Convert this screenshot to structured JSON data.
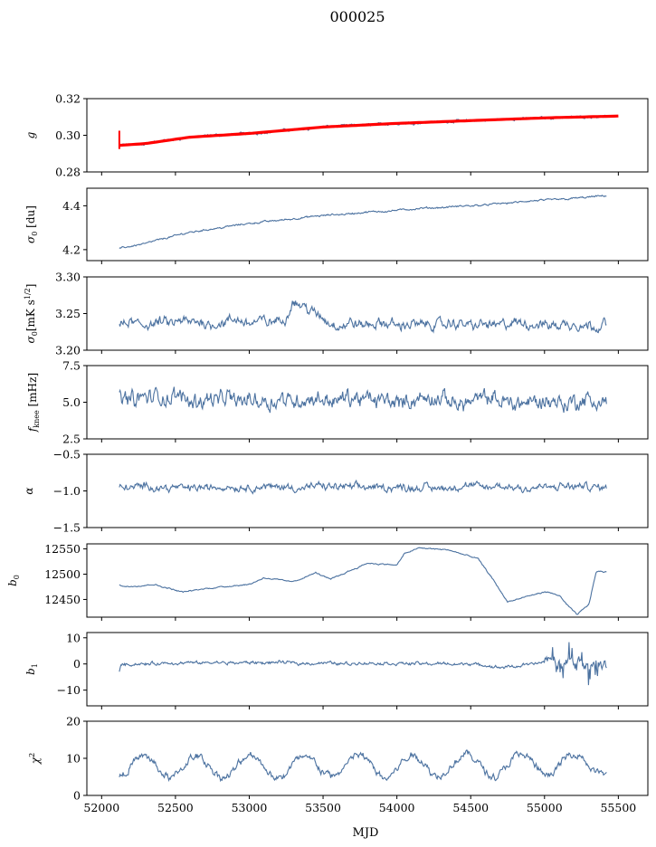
{
  "chart_data": {
    "type": "line",
    "title": "000025",
    "xlabel": "MJD",
    "xlim": [
      51900,
      55700
    ],
    "xticks": [
      52000,
      52500,
      53000,
      53500,
      54000,
      54500,
      55000,
      55500
    ],
    "colors": {
      "line": "#4c72a0",
      "overlay": "#ff0000"
    },
    "x_range": [
      52120,
      55420
    ],
    "panels": [
      {
        "id": "g",
        "ylabel": "g",
        "ylim": [
          0.28,
          0.32
        ],
        "yticks": [
          0.28,
          0.3,
          0.32
        ],
        "ytick_labels": [
          "0.28",
          "0.30",
          "0.32"
        ],
        "x": [
          52120,
          52300,
          52600,
          53000,
          53500,
          54000,
          54500,
          55000,
          55420
        ],
        "values": [
          0.2945,
          0.2955,
          0.299,
          0.301,
          0.3045,
          0.3065,
          0.308,
          0.3095,
          0.3105
        ],
        "noise": 0.0007,
        "overlay": {
          "name": "",
          "x": [
            52120,
            52300,
            52600,
            53000,
            53500,
            54000,
            54500,
            55000,
            55500
          ],
          "values": [
            0.2945,
            0.2955,
            0.299,
            0.301,
            0.3045,
            0.3065,
            0.308,
            0.3095,
            0.3105
          ]
        }
      },
      {
        "id": "sigma0-du",
        "ylabel": "σ0 [du]",
        "ylim": [
          4.15,
          4.48
        ],
        "yticks": [
          4.2,
          4.4
        ],
        "ytick_labels": [
          "4.2",
          "4.4"
        ],
        "x": [
          52120,
          52300,
          52600,
          53000,
          53500,
          54000,
          54500,
          55000,
          55420
        ],
        "values": [
          4.205,
          4.23,
          4.28,
          4.32,
          4.355,
          4.38,
          4.4,
          4.425,
          4.445
        ],
        "noise": 0.004
      },
      {
        "id": "sigma0-mk",
        "ylabel": "σ0[mK s1/2]",
        "ylim": [
          3.2,
          3.3
        ],
        "yticks": [
          3.2,
          3.25,
          3.3
        ],
        "ytick_labels": [
          "3.20",
          "3.25",
          "3.30"
        ],
        "x": [
          52120,
          53250,
          53300,
          53550,
          55420
        ],
        "values": [
          3.235,
          3.24,
          3.27,
          3.235,
          3.235
        ],
        "noise": 0.007
      },
      {
        "id": "fknee",
        "ylabel": "fknee [mHz]",
        "ylim": [
          2.5,
          7.5
        ],
        "yticks": [
          2.5,
          5.0,
          7.5
        ],
        "ytick_labels": [
          "2.5",
          "5.0",
          "7.5"
        ],
        "x": [
          52120,
          55420
        ],
        "values": [
          5.3,
          5.0
        ],
        "noise": 0.55
      },
      {
        "id": "alpha",
        "ylabel": "α",
        "ylim": [
          -1.5,
          -0.5
        ],
        "yticks": [
          -1.5,
          -1.0,
          -0.5
        ],
        "ytick_labels": [
          "−1.5",
          "−1.0",
          "−0.5"
        ],
        "x": [
          52120,
          55420
        ],
        "values": [
          -0.95,
          -0.95
        ],
        "noise": 0.05
      },
      {
        "id": "b0",
        "ylabel": "b0",
        "ylim": [
          12415,
          12560
        ],
        "yticks": [
          12450,
          12500,
          12550
        ],
        "ytick_labels": [
          "12450",
          "12500",
          "12550"
        ],
        "x": [
          52120,
          52160,
          52350,
          52550,
          52800,
          53000,
          53100,
          53300,
          53450,
          53550,
          53800,
          54000,
          54050,
          54150,
          54350,
          54550,
          54650,
          54750,
          55000,
          55100,
          55150,
          55220,
          55300,
          55350,
          55420
        ],
        "values": [
          12480,
          12475,
          12480,
          12465,
          12475,
          12480,
          12493,
          12485,
          12503,
          12490,
          12522,
          12518,
          12540,
          12552,
          12548,
          12530,
          12490,
          12445,
          12465,
          12458,
          12440,
          12420,
          12440,
          12505,
          12505
        ],
        "noise": 1.2
      },
      {
        "id": "b1",
        "ylabel": "b1",
        "ylim": [
          -16,
          12
        ],
        "yticks": [
          -10,
          0,
          10
        ],
        "ytick_labels": [
          "−10",
          "0",
          "10"
        ],
        "x": [
          52120,
          52130,
          52200,
          53000,
          54500,
          54700,
          55000,
          55420
        ],
        "values": [
          -3,
          0,
          0,
          0.5,
          0,
          -1.5,
          0.5,
          0
        ],
        "noise": 0.6
      },
      {
        "id": "chi2",
        "ylabel": "χ2",
        "ylim": [
          0,
          20
        ],
        "yticks": [
          0,
          10,
          20
        ],
        "ytick_labels": [
          "0",
          "10",
          "20"
        ],
        "x": [
          52120,
          55420
        ],
        "values": [
          7.5,
          8.5
        ],
        "noise": 1.0,
        "seasonal_amplitude": 2.8,
        "seasonal_period_days": 365
      }
    ]
  }
}
